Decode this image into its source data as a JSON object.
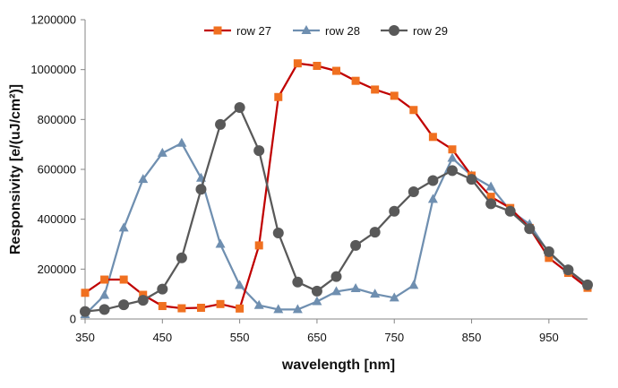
{
  "chart_data": {
    "type": "line",
    "title": "",
    "xlabel": "wavelength [nm]",
    "ylabel": "Responsivity [e/(uJ/cm²)]",
    "xlim": [
      350,
      1000
    ],
    "ylim": [
      0,
      1200000
    ],
    "x_ticks": [
      350,
      450,
      550,
      650,
      750,
      850,
      950
    ],
    "x_tick_labels": [
      "350",
      "450",
      "550",
      "650",
      "750",
      "850",
      "950"
    ],
    "y_ticks": [
      0,
      200000,
      400000,
      600000,
      800000,
      1000000,
      1200000
    ],
    "y_tick_labels": [
      "0",
      "200000",
      "400000",
      "600000",
      "800000",
      "1000000",
      "1200000"
    ],
    "grid": false,
    "legend": "top-center",
    "x": [
      350,
      375,
      400,
      425,
      450,
      475,
      500,
      525,
      550,
      575,
      600,
      625,
      650,
      675,
      700,
      725,
      750,
      775,
      800,
      825,
      850,
      875,
      900,
      925,
      950,
      975,
      1000
    ],
    "series": [
      {
        "name": "row 27",
        "color": "#c00000",
        "marker_color": "#f07020",
        "marker": "square",
        "values": [
          105000,
          158000,
          158000,
          97000,
          52000,
          43000,
          45000,
          60000,
          42000,
          295000,
          890000,
          1025000,
          1015000,
          995000,
          955000,
          920000,
          895000,
          838000,
          730000,
          680000,
          575000,
          490000,
          445000,
          365000,
          245000,
          185000,
          125000
        ]
      },
      {
        "name": "row 28",
        "color": "#6f8fb0",
        "marker_color": "#6f8fb0",
        "marker": "triangle",
        "values": [
          18000,
          95000,
          365000,
          560000,
          665000,
          705000,
          565000,
          300000,
          135000,
          55000,
          38000,
          38000,
          70000,
          110000,
          122000,
          100000,
          85000,
          135000,
          480000,
          645000,
          575000,
          530000,
          435000,
          380000,
          265000,
          195000,
          135000
        ]
      },
      {
        "name": "row 29",
        "color": "#595959",
        "marker_color": "#595959",
        "marker": "circle",
        "values": [
          30000,
          38000,
          57000,
          75000,
          120000,
          245000,
          520000,
          780000,
          848000,
          675000,
          345000,
          148000,
          112000,
          170000,
          295000,
          348000,
          432000,
          510000,
          555000,
          595000,
          560000,
          462000,
          432000,
          362000,
          270000,
          197000,
          137000
        ]
      }
    ]
  }
}
